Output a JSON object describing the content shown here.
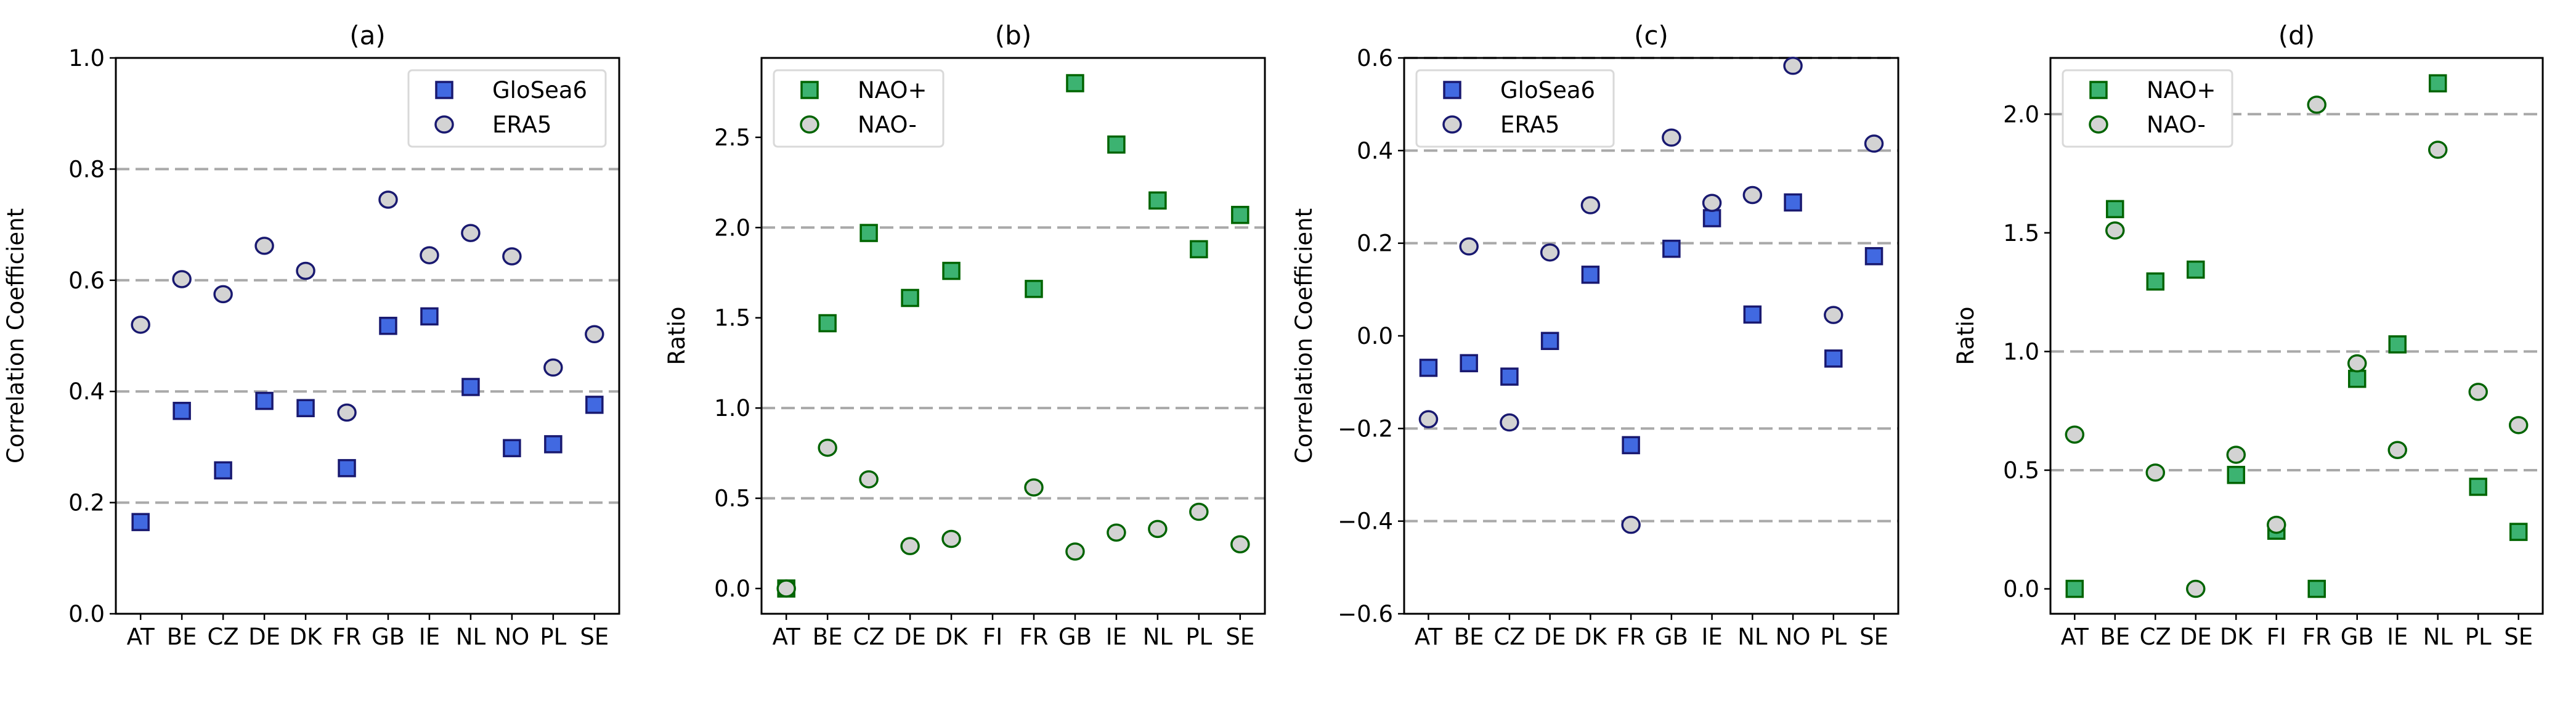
{
  "colors": {
    "glosea6_fill": "#4169e1",
    "glosea6_edge": "#191970",
    "era5_fill": "#d3d3d3",
    "era5_edge": "#191970",
    "naoplus_fill": "#3cb371",
    "naoplus_edge": "#006400",
    "naominus_fill": "#d3d3d3",
    "naominus_edge": "#006400",
    "grid": "#a9a9a9"
  },
  "chart_data": [
    {
      "type": "scatter",
      "title": "(a)",
      "xlabel": "",
      "ylabel": "Correlation Coefficient",
      "ylim": [
        0,
        1.0
      ],
      "yticks": [
        0.0,
        0.2,
        0.4,
        0.6,
        0.8,
        1.0
      ],
      "ytick_labels": [
        "0.0",
        "0.2",
        "0.4",
        "0.6",
        "0.8",
        "1.0"
      ],
      "hlines": [
        0.2,
        0.4,
        0.6,
        0.8
      ],
      "legend": "upper-right",
      "categories": [
        "AT",
        "BE",
        "CZ",
        "DE",
        "DK",
        "FR",
        "GB",
        "IE",
        "NL",
        "NO",
        "PL",
        "SE"
      ],
      "series": [
        {
          "name": "GloSea6",
          "marker": "square",
          "values": [
            0.165,
            0.365,
            0.258,
            0.383,
            0.37,
            0.262,
            0.518,
            0.535,
            0.408,
            0.298,
            0.305,
            0.376
          ]
        },
        {
          "name": "ERA5",
          "marker": "circle",
          "values": [
            0.52,
            0.602,
            0.575,
            0.662,
            0.617,
            0.362,
            0.745,
            0.645,
            0.685,
            0.643,
            0.443,
            0.503
          ]
        }
      ]
    },
    {
      "type": "scatter",
      "title": "(b)",
      "xlabel": "",
      "ylabel": "Ratio",
      "ylim": [
        -0.14,
        2.94
      ],
      "yticks": [
        0.0,
        0.5,
        1.0,
        1.5,
        2.0,
        2.5
      ],
      "ytick_labels": [
        "0.0",
        "0.5",
        "1.0",
        "1.5",
        "2.0",
        "2.5"
      ],
      "hlines": [
        0.5,
        1.0,
        2.0
      ],
      "legend": "upper-left",
      "categories": [
        "AT",
        "BE",
        "CZ",
        "DE",
        "DK",
        "FI",
        "FR",
        "GB",
        "IE",
        "NL",
        "PL",
        "SE"
      ],
      "series": [
        {
          "name": "NAO+",
          "marker": "square",
          "values": [
            0.0,
            1.47,
            1.97,
            1.61,
            1.76,
            null,
            1.66,
            2.8,
            2.46,
            2.15,
            1.88,
            2.07
          ]
        },
        {
          "name": "NAO-",
          "marker": "circle",
          "values": [
            0.0,
            0.78,
            0.605,
            0.235,
            0.275,
            null,
            0.56,
            0.205,
            0.31,
            0.33,
            0.425,
            0.245
          ]
        }
      ]
    },
    {
      "type": "scatter",
      "title": "(c)",
      "xlabel": "",
      "ylabel": "Correlation Coefficient",
      "ylim": [
        -0.6,
        0.6
      ],
      "yticks": [
        -0.6,
        -0.4,
        -0.2,
        0.0,
        0.2,
        0.4,
        0.6
      ],
      "ytick_labels": [
        "−0.6",
        "−0.4",
        "−0.2",
        "0.0",
        "0.2",
        "0.4",
        "0.6"
      ],
      "hlines": [
        -0.4,
        -0.2,
        0.2,
        0.4,
        0.6
      ],
      "legend": "upper-left",
      "categories": [
        "AT",
        "BE",
        "CZ",
        "DE",
        "DK",
        "FR",
        "GB",
        "IE",
        "NL",
        "NO",
        "PL",
        "SE"
      ],
      "series": [
        {
          "name": "GloSea6",
          "marker": "square",
          "values": [
            -0.069,
            -0.059,
            -0.088,
            -0.011,
            0.132,
            -0.236,
            0.188,
            0.254,
            0.046,
            0.288,
            -0.049,
            0.172
          ]
        },
        {
          "name": "ERA5",
          "marker": "circle",
          "values": [
            -0.18,
            0.193,
            -0.187,
            0.18,
            0.282,
            -0.408,
            0.428,
            0.287,
            0.304,
            0.583,
            0.045,
            0.415
          ]
        }
      ]
    },
    {
      "type": "scatter",
      "title": "(d)",
      "xlabel": "",
      "ylabel": "Ratio",
      "ylim": [
        -0.105,
        2.237
      ],
      "yticks": [
        0.0,
        0.5,
        1.0,
        1.5,
        2.0
      ],
      "ytick_labels": [
        "0.0",
        "0.5",
        "1.0",
        "1.5",
        "2.0"
      ],
      "hlines": [
        0.5,
        1.0,
        2.0
      ],
      "legend": "upper-left",
      "categories": [
        "AT",
        "BE",
        "CZ",
        "DE",
        "DK",
        "FI",
        "FR",
        "GB",
        "IE",
        "NL",
        "PL",
        "SE"
      ],
      "series": [
        {
          "name": "NAO+",
          "marker": "square",
          "values": [
            0.0,
            1.6,
            1.295,
            1.345,
            0.48,
            0.245,
            0.0,
            0.885,
            1.03,
            2.13,
            0.43,
            0.24
          ]
        },
        {
          "name": "NAO-",
          "marker": "circle",
          "values": [
            0.65,
            1.51,
            0.49,
            0.0,
            0.565,
            0.27,
            2.04,
            0.95,
            0.585,
            1.85,
            0.83,
            0.69
          ]
        }
      ]
    }
  ]
}
